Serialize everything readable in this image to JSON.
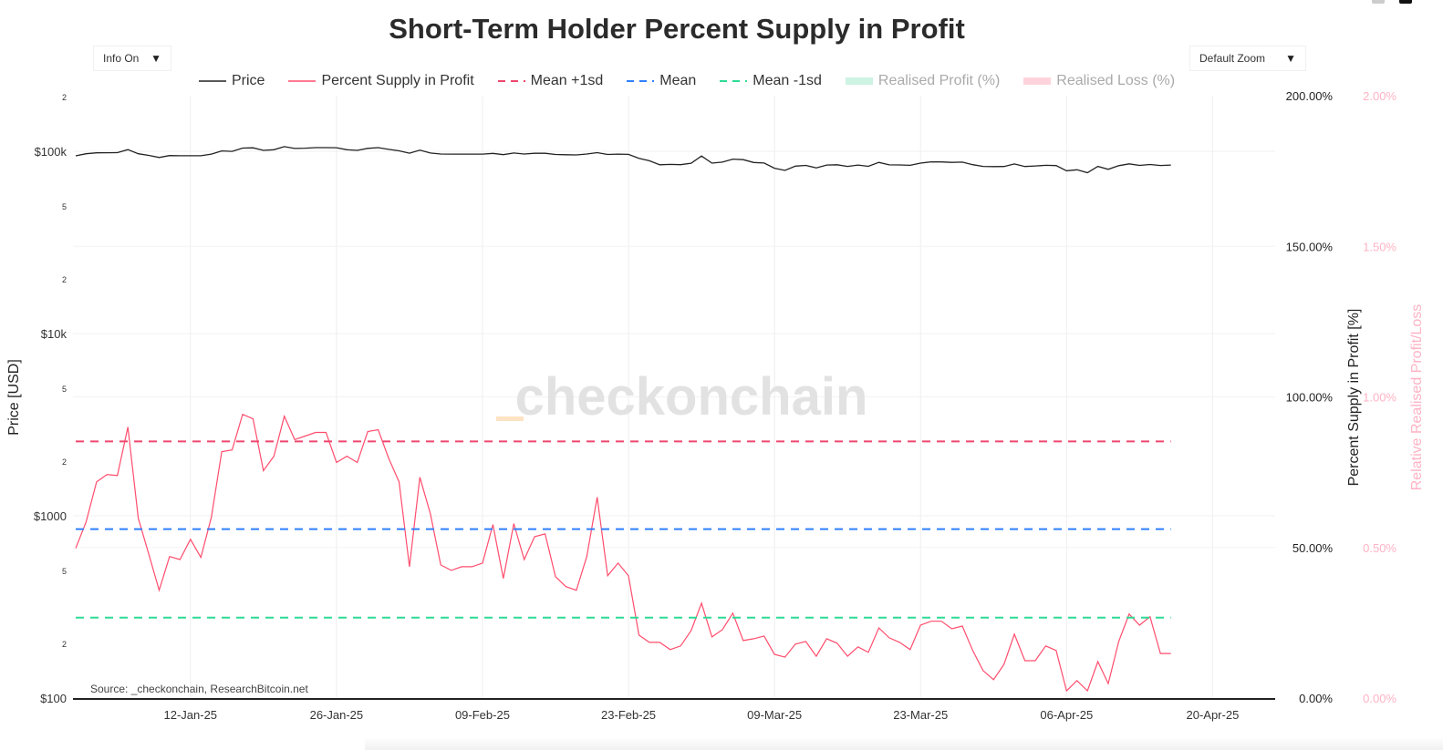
{
  "title": "Short-Term Holder Percent Supply in Profit",
  "controls": {
    "info_label": "Info On",
    "zoom_label": "Default Zoom",
    "arrow": "▼"
  },
  "toolbar_icons": [
    "camera-icon",
    "bar-chart-icon"
  ],
  "legend": [
    {
      "label": "Price",
      "color": "#222222",
      "style": "solid",
      "active": true
    },
    {
      "label": "Percent Supply in Profit",
      "color": "#ff4d6d",
      "style": "solid",
      "active": true
    },
    {
      "label": "Mean +1sd",
      "color": "#ef476f",
      "style": "dashed",
      "active": true
    },
    {
      "label": "Mean",
      "color": "#2f80ff",
      "style": "dashed",
      "active": true
    },
    {
      "label": "Mean -1sd",
      "color": "#2edb94",
      "style": "dashed",
      "active": true
    },
    {
      "label": "Realised Profit (%)",
      "color": "#cdf3e3",
      "style": "block",
      "active": false
    },
    {
      "label": "Realised Loss (%)",
      "color": "#ffd3dc",
      "style": "block",
      "active": false
    }
  ],
  "watermark": "checkonchain",
  "watermark_prefix": "_",
  "source": "Source: _checkonchain, ResearchBitcoin.net",
  "chart_data": {
    "type": "line",
    "title": "Short-Term Holder Percent Supply in Profit",
    "xlim": [
      "2025-01-01",
      "2025-04-26"
    ],
    "x_ticks": [
      "12-Jan-25",
      "26-Jan-25",
      "09-Feb-25",
      "23-Feb-25",
      "09-Mar-25",
      "23-Mar-25",
      "06-Apr-25",
      "20-Apr-25"
    ],
    "x_tick_dates": [
      "2025-01-12",
      "2025-01-26",
      "2025-02-09",
      "2025-02-23",
      "2025-03-09",
      "2025-03-23",
      "2025-04-06",
      "2025-04-20"
    ],
    "x_start": "2025-01-01",
    "x_step": "1 day",
    "y_left": {
      "label": "Price [USD]",
      "scale": "log",
      "range": [
        100,
        200000
      ],
      "ticks": [
        {
          "v": 100,
          "t": "$100"
        },
        {
          "v": 200,
          "t": "2"
        },
        {
          "v": 500,
          "t": "5"
        },
        {
          "v": 1000,
          "t": "$1000"
        },
        {
          "v": 2000,
          "t": "2"
        },
        {
          "v": 5000,
          "t": "5"
        },
        {
          "v": 10000,
          "t": "$10k"
        },
        {
          "v": 20000,
          "t": "2"
        },
        {
          "v": 50000,
          "t": "5"
        },
        {
          "v": 100000,
          "t": "$100k"
        },
        {
          "v": 200000,
          "t": "2"
        }
      ]
    },
    "y_right": {
      "label": "Percent Supply in Profit [%]",
      "range": [
        0,
        200
      ],
      "ticks": [
        "0.00%",
        "50.00%",
        "100.00%",
        "150.00%",
        "200.00%"
      ]
    },
    "y_right2": {
      "label": "Relative Realised Profit/Loss",
      "range": [
        0,
        2
      ],
      "ticks": [
        "0.00%",
        "0.50%",
        "1.00%",
        "1.50%",
        "2.00%"
      ],
      "color": "#ffb3c4"
    },
    "grid": true,
    "legend_position": "top",
    "series": [
      {
        "name": "Price",
        "axis": "left",
        "color": "#222222",
        "values": [
          94400,
          96900,
          98100,
          98200,
          98300,
          102100,
          96900,
          95000,
          92500,
          94700,
          94500,
          94500,
          94500,
          96500,
          100500,
          99900,
          104100,
          104500,
          101100,
          102000,
          106100,
          103600,
          104000,
          104700,
          104700,
          104600,
          102000,
          101200,
          103700,
          104700,
          102400,
          100600,
          97600,
          101400,
          97800,
          96600,
          96500,
          96500,
          96500,
          96500,
          97400,
          95800,
          97800,
          96600,
          97500,
          97500,
          96100,
          95700,
          95500,
          96600,
          98300,
          96100,
          96500,
          96200,
          91500,
          88700,
          84300,
          84700,
          84400,
          86000,
          94200,
          86100,
          87200,
          90600,
          89900,
          86800,
          86200,
          80700,
          78500,
          82900,
          83700,
          81100,
          84000,
          84300,
          82600,
          84000,
          82700,
          86900,
          84200,
          84100,
          83800,
          86100,
          87500,
          87400,
          86900,
          87200,
          84400,
          82600,
          82400,
          82500,
          85200,
          82500,
          83100,
          83800,
          83500,
          78200,
          79200,
          76300,
          82600,
          79600,
          83400,
          85300,
          83700,
          84600,
          83600,
          84000
        ]
      },
      {
        "name": "Percent Supply in Profit",
        "axis": "right",
        "color": "#ff4d6d",
        "values": [
          49.7,
          58.5,
          71.8,
          74.2,
          73.9,
          90,
          59.7,
          47.9,
          35.8,
          47,
          46,
          52.7,
          46.7,
          60,
          81.8,
          82.4,
          94.2,
          92.7,
          75.5,
          80.3,
          93.6,
          85.8,
          87,
          88.2,
          88.2,
          78.2,
          80.3,
          78.2,
          88.5,
          89.1,
          79.7,
          71.8,
          43.6,
          73.3,
          61.2,
          44.2,
          42.4,
          43.6,
          43.6,
          44.8,
          57.6,
          39.7,
          57.9,
          46,
          53.6,
          54.5,
          40.3,
          37,
          35.8,
          47,
          66.7,
          40.6,
          44.8,
          40.6,
          20.9,
          18.5,
          18.5,
          16.1,
          17.3,
          22.4,
          31.5,
          20.3,
          22.7,
          28.2,
          19.1,
          19.7,
          20.6,
          14.5,
          13.6,
          17.9,
          18.8,
          13.9,
          19.7,
          18.2,
          13.9,
          17,
          15.2,
          23.3,
          20,
          18.5,
          16.1,
          24.2,
          25.5,
          25.5,
          23,
          23.9,
          15.8,
          9.1,
          6.1,
          11.2,
          21.2,
          12.4,
          12.4,
          17.3,
          15.8,
          2.4,
          5.8,
          2.4,
          12.1,
          4.8,
          18.8,
          27.9,
          24.2,
          27,
          14.8,
          14.8
        ]
      },
      {
        "name": "Mean +1sd",
        "axis": "right",
        "color": "#ef476f",
        "constant": 85.2
      },
      {
        "name": "Mean",
        "axis": "right",
        "color": "#2f80ff",
        "constant": 56.1
      },
      {
        "name": "Mean -1sd",
        "axis": "right",
        "color": "#2edb94",
        "constant": 26.7
      }
    ]
  }
}
